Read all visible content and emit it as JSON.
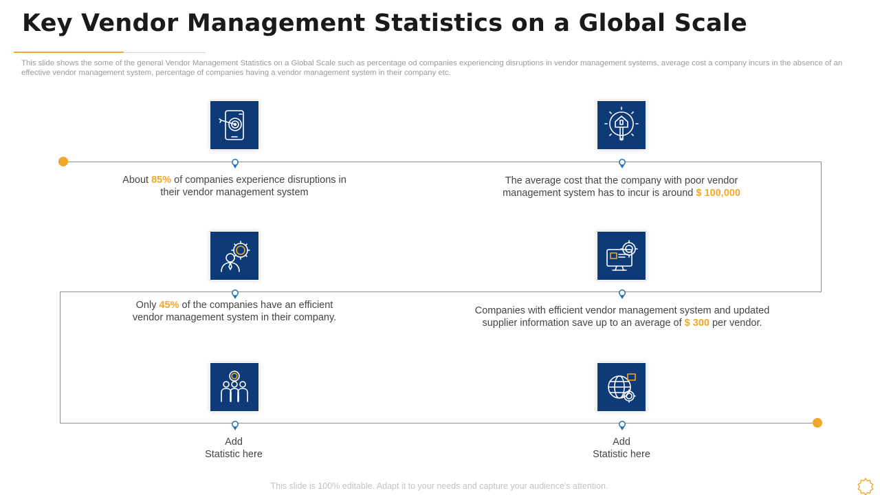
{
  "header": {
    "title": "Key Vendor Management Statistics on a Global Scale",
    "subtitle": "This slide shows the some of the general Vendor Management Statistics on a Global Scale such as percentage od companies experiencing disruptions in vendor management systems, average cost a company incurs in the absence of an effective vendor management system, percentage of companies having a vendor management system in their company etc."
  },
  "stats": [
    {
      "icon": "tablet-target-icon",
      "prefix": "About ",
      "highlight": "85%",
      "suffix": " of companies experience disruptions in their vendor management system"
    },
    {
      "icon": "gear-hand-icon",
      "prefix": "The average cost that the company with poor vendor management system has to incur is around ",
      "highlight": "$ 100,000",
      "suffix": ""
    },
    {
      "icon": "person-gear-icon",
      "prefix": "Only ",
      "highlight": "45%",
      "suffix": " of the companies have an efficient vendor management system in their company."
    },
    {
      "icon": "computer-gear-icon",
      "prefix": "Companies with efficient vendor management system and updated supplier information save up to an average of ",
      "highlight": "$ 300",
      "suffix": " per vendor."
    },
    {
      "icon": "team-gear-icon",
      "line1": "Add",
      "line2": "Statistic here"
    },
    {
      "icon": "globe-gear-icon",
      "line1": "Add",
      "line2": "Statistic here"
    }
  ],
  "footer": {
    "text": "This slide is 100% editable. Adapt it to your needs and capture your audience's attention."
  },
  "colors": {
    "accent": "#f2a72b",
    "icon_bg": "#0e3a78",
    "track": "#8c8c8c",
    "pin": "#1d6fb8"
  }
}
